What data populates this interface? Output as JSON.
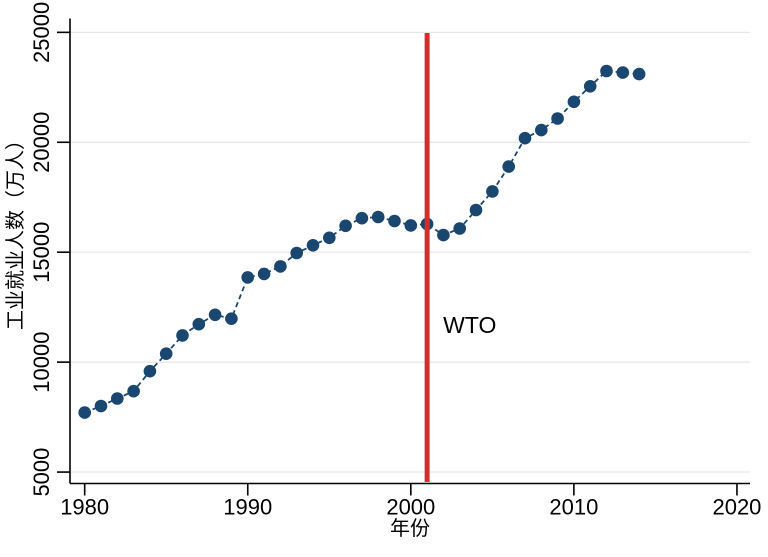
{
  "chart_data": {
    "type": "scatter",
    "title": "",
    "xlabel": "年份",
    "ylabel": "工业就业人数（万人）",
    "series_name": "工业就业人数",
    "x": [
      1980,
      1981,
      1982,
      1983,
      1984,
      1985,
      1986,
      1987,
      1988,
      1989,
      1990,
      1991,
      1992,
      1993,
      1994,
      1995,
      1996,
      1997,
      1998,
      1999,
      2000,
      2001,
      2002,
      2003,
      2004,
      2005,
      2006,
      2007,
      2008,
      2009,
      2010,
      2011,
      2012,
      2013,
      2014
    ],
    "values": [
      7707,
      8003,
      8346,
      8679,
      9590,
      10384,
      11216,
      11726,
      12152,
      11976,
      13856,
      14015,
      14355,
      14965,
      15312,
      15655,
      16203,
      16547,
      16600,
      16421,
      16219,
      16284,
      15780,
      16077,
      16920,
      17766,
      18894,
      20186,
      20553,
      21080,
      21842,
      22544,
      23241,
      23170,
      23099
    ],
    "x_ticks": [
      1980,
      1990,
      2000,
      2010,
      2020
    ],
    "y_ticks": [
      5000,
      10000,
      15000,
      20000,
      25000
    ],
    "xlim": [
      1979.1,
      2020.8
    ],
    "ylim": [
      4480,
      25630
    ],
    "grid": "horizontal",
    "legend": "none",
    "marker": "filled-circle",
    "line_style": "dashed",
    "annotation": {
      "type": "vertical-line",
      "x": 2001,
      "label": "WTO"
    },
    "colors": {
      "series": "#1a476f",
      "event_line": "#d62c2e",
      "grid": "#e6e6e6",
      "axis": "#000000",
      "text": "#000000",
      "background": "#ffffff"
    }
  }
}
